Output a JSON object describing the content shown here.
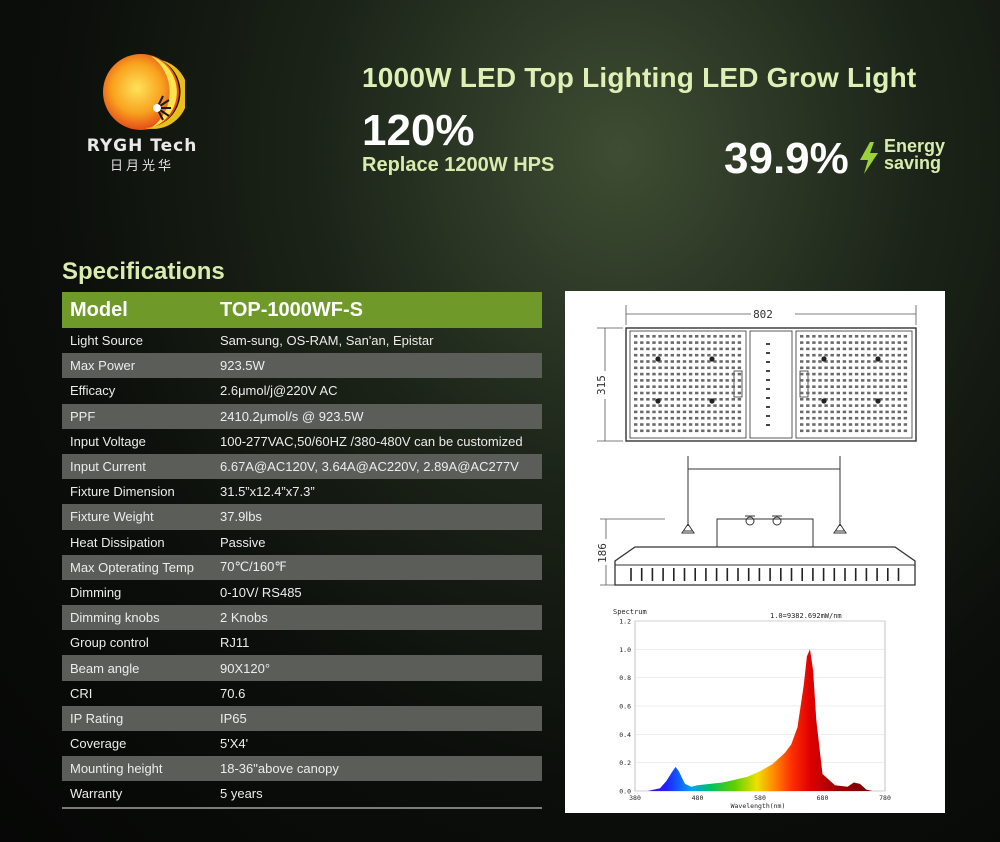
{
  "brand": {
    "name_en": "RYGH Tech",
    "name_cn": "日月光华"
  },
  "headline": "1000W LED Top Lighting LED Grow Light",
  "efficiency": {
    "percent": "120%",
    "replace": "Replace 1200W HPS"
  },
  "saving": {
    "percent": "39.9%",
    "line1": "Energy",
    "line2": "saving"
  },
  "specs": {
    "title": "Specifications",
    "header": {
      "key": "Model",
      "value": "TOP-1000WF-S"
    },
    "rows": [
      {
        "key": "Light Source",
        "value": "Sam-sung, OS-RAM, San'an, Epistar"
      },
      {
        "key": "Max Power",
        "value": "923.5W"
      },
      {
        "key": "Efficacy",
        "value": "2.6μmol/j@220V AC"
      },
      {
        "key": "PPF",
        "value": "2410.2μmol/s @ 923.5W"
      },
      {
        "key": "Input Voltage",
        "value": "100-277VAC,50/60HZ /380-480V can be customized"
      },
      {
        "key": "Input Current",
        "value": "6.67A@AC120V, 3.64A@AC220V, 2.89A@AC277V"
      },
      {
        "key": "Fixture Dimension",
        "value": "31.5”x12.4”x7.3”"
      },
      {
        "key": "Fixture Weight",
        "value": "37.9lbs"
      },
      {
        "key": "Heat Dissipation",
        "value": "Passive"
      },
      {
        "key": "Max Opterating Temp",
        "value": "70℃/160℉"
      },
      {
        "key": "Dimming",
        "value": "0-10V/ RS485"
      },
      {
        "key": "Dimming knobs",
        "value": "2 Knobs"
      },
      {
        "key": "Group control",
        "value": "RJ11"
      },
      {
        "key": "Beam angle",
        "value": "90X120°"
      },
      {
        "key": "CRI",
        "value": "70.6"
      },
      {
        "key": "IP Rating",
        "value": "IP65"
      },
      {
        "key": "Coverage",
        "value": "5'X4'"
      },
      {
        "key": "Mounting height",
        "value": "18-36\"above canopy"
      },
      {
        "key": "Warranty",
        "value": "5 years"
      }
    ]
  },
  "drawing": {
    "width_label": "802",
    "height_label": "315",
    "depth_label": "186"
  },
  "chart_data": {
    "type": "line",
    "title": "Spectrum",
    "annotation": "1.0=9382.692mW/nm",
    "xlabel": "Wavelength(nm)",
    "ylabel": "",
    "xlim": [
      380,
      780
    ],
    "ylim": [
      0.0,
      1.2
    ],
    "xticks": [
      380,
      480,
      580,
      680,
      780
    ],
    "yticks": [
      "0.0",
      "0.2",
      "0.4",
      "0.6",
      "0.8",
      "1.0",
      "1.2"
    ],
    "series": [
      {
        "x": [
          380,
          400,
          420,
          430,
          440,
          445,
          450,
          460,
          470,
          480,
          500,
          520,
          540,
          560,
          580,
          600,
          610,
          620,
          630,
          640,
          650,
          655,
          660,
          665,
          670,
          680,
          700,
          720,
          730,
          740,
          750,
          760
        ],
        "y": [
          0.0,
          0.0,
          0.02,
          0.07,
          0.14,
          0.17,
          0.14,
          0.05,
          0.03,
          0.04,
          0.05,
          0.06,
          0.08,
          0.1,
          0.14,
          0.19,
          0.23,
          0.27,
          0.33,
          0.45,
          0.75,
          0.95,
          1.0,
          0.85,
          0.5,
          0.12,
          0.04,
          0.03,
          0.06,
          0.05,
          0.01,
          0.0
        ]
      }
    ]
  }
}
